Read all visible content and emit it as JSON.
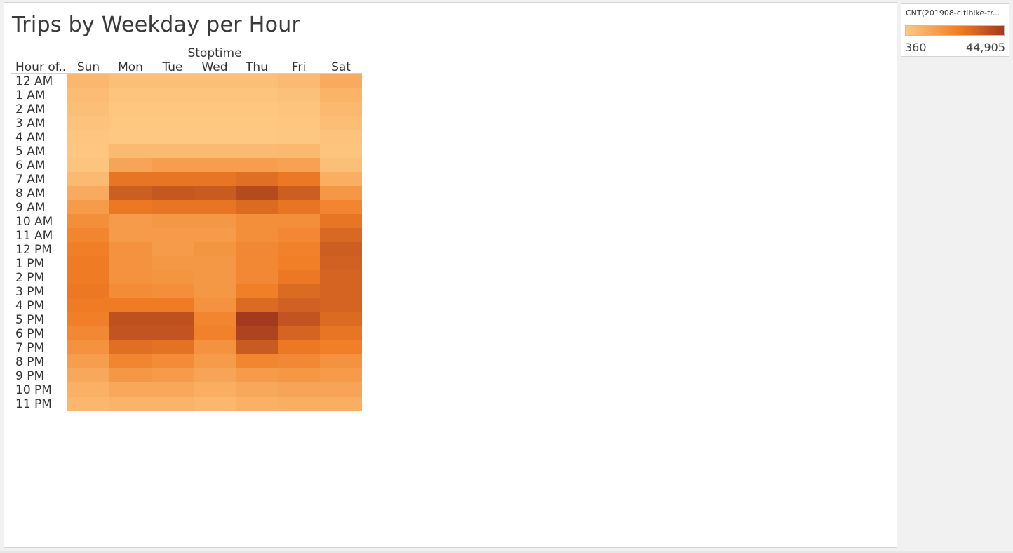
{
  "sheet_title": "Trips by Weekday per Hour",
  "chart_data": {
    "type": "heatmap",
    "title": "Trips by Weekday per Hour",
    "column_header": "Stoptime",
    "row_header": "Hour of..",
    "columns": [
      "Sun",
      "Mon",
      "Tue",
      "Wed",
      "Thu",
      "Fri",
      "Sat"
    ],
    "rows": [
      "12 AM",
      "1 AM",
      "2 AM",
      "3 AM",
      "4 AM",
      "5 AM",
      "6 AM",
      "7 AM",
      "8 AM",
      "9 AM",
      "10 AM",
      "11 AM",
      "12 PM",
      "1 PM",
      "2 PM",
      "3 PM",
      "4 PM",
      "5 PM",
      "6 PM",
      "7 PM",
      "8 PM",
      "9 PM",
      "10 PM",
      "11 PM"
    ],
    "values": [
      [
        6000,
        3500,
        3500,
        3500,
        3500,
        5000,
        10000
      ],
      [
        4500,
        2000,
        2000,
        2000,
        2000,
        3000,
        7500
      ],
      [
        3500,
        1200,
        1200,
        1200,
        1200,
        2000,
        5500
      ],
      [
        2500,
        800,
        800,
        800,
        800,
        1200,
        4000
      ],
      [
        1500,
        600,
        600,
        600,
        600,
        1000,
        2500
      ],
      [
        1200,
        5000,
        5000,
        5000,
        5000,
        5500,
        2000
      ],
      [
        2000,
        12000,
        14000,
        14000,
        14000,
        13000,
        3500
      ],
      [
        5000,
        27000,
        27000,
        27000,
        29000,
        26000,
        9000
      ],
      [
        10000,
        34000,
        36000,
        35000,
        40000,
        34000,
        16000
      ],
      [
        15000,
        26000,
        27000,
        27000,
        30000,
        27000,
        22000
      ],
      [
        19000,
        15000,
        16000,
        16000,
        19000,
        19000,
        27000
      ],
      [
        22000,
        15000,
        15000,
        15000,
        19000,
        21000,
        31000
      ],
      [
        24000,
        18000,
        15000,
        17000,
        21000,
        23000,
        34000
      ],
      [
        25000,
        18000,
        16000,
        16000,
        21000,
        24000,
        33000
      ],
      [
        25000,
        18000,
        17000,
        16000,
        21000,
        26000,
        32000
      ],
      [
        26000,
        20000,
        19000,
        16000,
        24000,
        30000,
        32000
      ],
      [
        25000,
        25000,
        25000,
        18000,
        30000,
        33000,
        32000
      ],
      [
        24000,
        38000,
        38000,
        22000,
        44905,
        37000,
        30000
      ],
      [
        21000,
        37000,
        37000,
        23000,
        42000,
        32000,
        27000
      ],
      [
        18000,
        29000,
        28000,
        18000,
        35000,
        26000,
        24000
      ],
      [
        14000,
        22000,
        20000,
        15000,
        22000,
        21000,
        18000
      ],
      [
        11000,
        16000,
        15000,
        12000,
        15000,
        16000,
        15000
      ],
      [
        8000,
        11000,
        11000,
        9000,
        11000,
        12000,
        12000
      ],
      [
        6000,
        7000,
        7000,
        6000,
        8000,
        9000,
        9000
      ]
    ],
    "color_min": 360,
    "color_max": 44905
  },
  "legend": {
    "title": "CNT(201908-citibike-tr...",
    "min_label": "360",
    "max_label": "44,905",
    "color_low": "#fec983",
    "color_mid": "#f07c24",
    "color_high": "#a33a1e"
  }
}
